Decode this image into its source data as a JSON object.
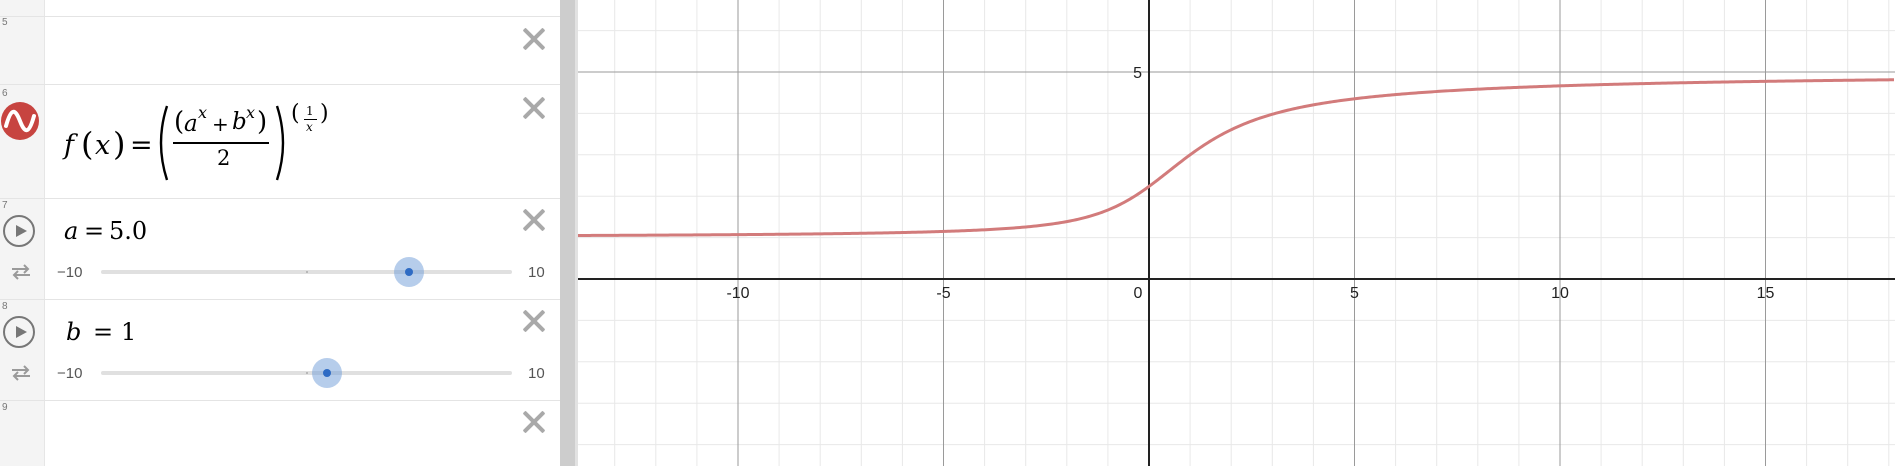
{
  "expressions": {
    "row5": {
      "index": "5"
    },
    "row6": {
      "index": "6",
      "formula": {
        "fname": "f",
        "var": "x",
        "eq": "=",
        "a": "a",
        "b": "b",
        "plus": "+",
        "exp": "x",
        "den": "2",
        "one": "1"
      },
      "icon": "desmos-graph-icon",
      "color": "#c74440"
    },
    "row7": {
      "index": "7",
      "name": "a",
      "eq": "=",
      "value": "5.0",
      "min": "−10",
      "max": "10",
      "slider_value": 5
    },
    "row8": {
      "index": "8",
      "name": "b",
      "eq": "=",
      "value": "1",
      "min": "−10",
      "max": "10",
      "slider_value": 1
    },
    "row9": {
      "index": "9"
    }
  },
  "graph": {
    "curve_color": "#d27b7b",
    "x_ticks": [
      "-10",
      "-5",
      "0",
      "5",
      "10",
      "15"
    ],
    "y_ticks": [
      "5"
    ]
  }
}
